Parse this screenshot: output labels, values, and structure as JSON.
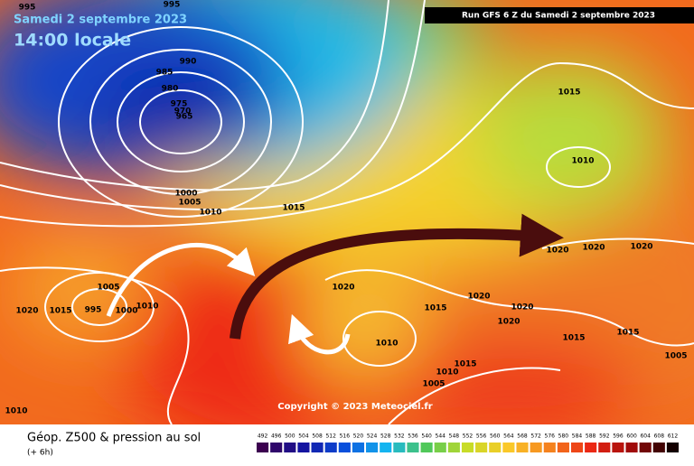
{
  "header": {
    "date": "Samedi 2 septembre 2023",
    "time": "14:00 locale",
    "run": "Run GFS 6 Z du Samedi 2 septembre 2023"
  },
  "copyright": "Copyright © 2023 Meteociel.fr",
  "footer": {
    "title": "Géop. Z500 & pression au sol",
    "subtitle": "(+ 6h)"
  },
  "isobar_labels": [
    "995",
    "995",
    "990",
    "985",
    "980",
    "975",
    "970",
    "965",
    "1000",
    "1005",
    "1010",
    "1015",
    "1015",
    "1010",
    "1020",
    "1020",
    "1020",
    "1005",
    "1020",
    "1015",
    "995",
    "1000",
    "1010",
    "1020",
    "1020",
    "1015",
    "1020",
    "1020",
    "1010",
    "1015",
    "1015",
    "1005",
    "1015",
    "1010",
    "1005",
    "1010"
  ],
  "scale_labels": [
    "492",
    "496",
    "500",
    "504",
    "508",
    "512",
    "516",
    "520",
    "524",
    "528",
    "532",
    "536",
    "540",
    "544",
    "548",
    "552",
    "556",
    "560",
    "564",
    "568",
    "572",
    "576",
    "580",
    "584",
    "588",
    "592",
    "596",
    "600",
    "604",
    "608",
    "612"
  ]
}
